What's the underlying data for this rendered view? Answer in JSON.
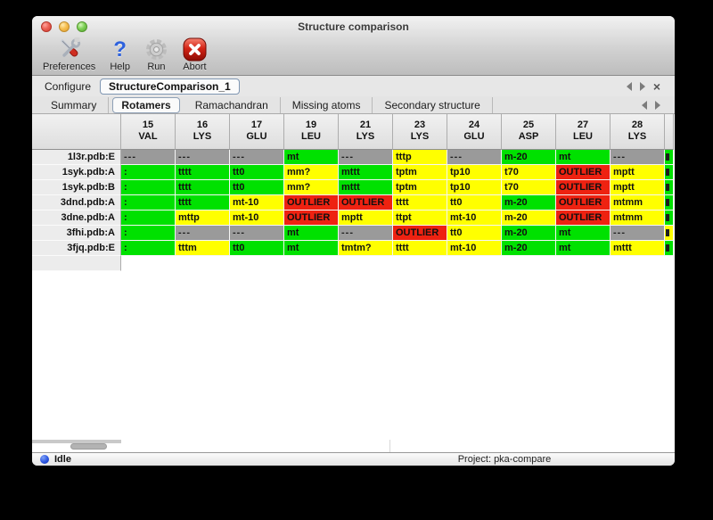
{
  "window": {
    "title": "Structure comparison"
  },
  "traffic_lights": {
    "close": "#ec6156",
    "minimize": "#f6bf50",
    "zoom": "#6ac04a"
  },
  "toolbar": {
    "items": [
      {
        "label": "Preferences",
        "icon": "tools-icon"
      },
      {
        "label": "Help",
        "icon": "question-icon"
      },
      {
        "label": "Run",
        "icon": "gear-icon"
      },
      {
        "label": "Abort",
        "icon": "stop-icon"
      }
    ]
  },
  "configure": {
    "label": "Configure",
    "value": "StructureComparison_1"
  },
  "subtabs": {
    "active": "Rotamers",
    "items": [
      "Summary",
      "Rotamers",
      "Ramachandran",
      "Missing atoms",
      "Secondary structure"
    ]
  },
  "table": {
    "columns": [
      {
        "num": "15",
        "res": "VAL"
      },
      {
        "num": "16",
        "res": "LYS"
      },
      {
        "num": "17",
        "res": "GLU"
      },
      {
        "num": "19",
        "res": "LEU"
      },
      {
        "num": "21",
        "res": "LYS"
      },
      {
        "num": "23",
        "res": "LYS"
      },
      {
        "num": "24",
        "res": "GLU"
      },
      {
        "num": "25",
        "res": "ASP"
      },
      {
        "num": "27",
        "res": "LEU"
      },
      {
        "num": "28",
        "res": "LYS"
      }
    ],
    "rows": [
      {
        "name": "1l3r.pdb:E",
        "overflow": "green",
        "cells": [
          [
            "gray",
            "---"
          ],
          [
            "gray",
            "---"
          ],
          [
            "gray",
            "---"
          ],
          [
            "green",
            "mt"
          ],
          [
            "gray",
            "---"
          ],
          [
            "yellow",
            "tttp"
          ],
          [
            "gray",
            "---"
          ],
          [
            "green",
            "m-20"
          ],
          [
            "green",
            "mt"
          ],
          [
            "gray",
            "---"
          ]
        ]
      },
      {
        "name": "1syk.pdb:A",
        "overflow": "green",
        "cells": [
          [
            "green",
            ":"
          ],
          [
            "green",
            "tttt"
          ],
          [
            "green",
            "tt0"
          ],
          [
            "yellow",
            "mm?"
          ],
          [
            "green",
            "mttt"
          ],
          [
            "yellow",
            "tptm"
          ],
          [
            "yellow",
            "tp10"
          ],
          [
            "yellow",
            "t70"
          ],
          [
            "red",
            "OUTLIER"
          ],
          [
            "yellow",
            "mptt"
          ]
        ]
      },
      {
        "name": "1syk.pdb:B",
        "overflow": "green",
        "cells": [
          [
            "green",
            ":"
          ],
          [
            "green",
            "tttt"
          ],
          [
            "green",
            "tt0"
          ],
          [
            "yellow",
            "mm?"
          ],
          [
            "green",
            "mttt"
          ],
          [
            "yellow",
            "tptm"
          ],
          [
            "yellow",
            "tp10"
          ],
          [
            "yellow",
            "t70"
          ],
          [
            "red",
            "OUTLIER"
          ],
          [
            "yellow",
            "mptt"
          ]
        ]
      },
      {
        "name": "3dnd.pdb:A",
        "overflow": "green",
        "cells": [
          [
            "green",
            ":"
          ],
          [
            "green",
            "tttt"
          ],
          [
            "yellow",
            "mt-10"
          ],
          [
            "red",
            "OUTLIER"
          ],
          [
            "red",
            "OUTLIER"
          ],
          [
            "yellow",
            "tttt"
          ],
          [
            "yellow",
            "tt0"
          ],
          [
            "green",
            "m-20"
          ],
          [
            "red",
            "OUTLIER"
          ],
          [
            "yellow",
            "mtmm"
          ]
        ]
      },
      {
        "name": "3dne.pdb:A",
        "overflow": "green",
        "cells": [
          [
            "green",
            ":"
          ],
          [
            "yellow",
            "mttp"
          ],
          [
            "yellow",
            "mt-10"
          ],
          [
            "red",
            "OUTLIER"
          ],
          [
            "yellow",
            "mptt"
          ],
          [
            "yellow",
            "ttpt"
          ],
          [
            "yellow",
            "mt-10"
          ],
          [
            "yellow",
            "m-20"
          ],
          [
            "red",
            "OUTLIER"
          ],
          [
            "yellow",
            "mtmm"
          ]
        ]
      },
      {
        "name": "3fhi.pdb:A",
        "overflow": "yellow",
        "cells": [
          [
            "green",
            ":"
          ],
          [
            "gray",
            "---"
          ],
          [
            "gray",
            "---"
          ],
          [
            "green",
            "mt"
          ],
          [
            "gray",
            "---"
          ],
          [
            "red",
            "OUTLIER"
          ],
          [
            "yellow",
            "tt0"
          ],
          [
            "green",
            "m-20"
          ],
          [
            "green",
            "mt"
          ],
          [
            "gray",
            "---"
          ]
        ]
      },
      {
        "name": "3fjq.pdb:E",
        "overflow": "green",
        "cells": [
          [
            "green",
            ":"
          ],
          [
            "yellow",
            "tttm"
          ],
          [
            "green",
            "tt0"
          ],
          [
            "green",
            "mt"
          ],
          [
            "yellow",
            "tmtm?"
          ],
          [
            "yellow",
            "tttt"
          ],
          [
            "yellow",
            "mt-10"
          ],
          [
            "green",
            "m-20"
          ],
          [
            "green",
            "mt"
          ],
          [
            "yellow",
            "mttt"
          ]
        ]
      }
    ]
  },
  "statusbar": {
    "status": "Idle",
    "project": "Project: pka-compare"
  },
  "colors": {
    "green": "#00e100",
    "yellow": "#ffff00",
    "red": "#ee2211",
    "gray": "#9a9a9a"
  }
}
